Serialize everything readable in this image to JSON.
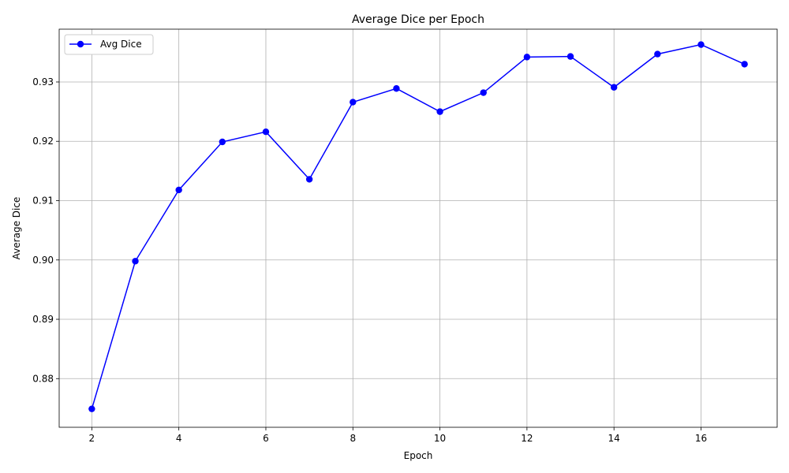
{
  "chart_data": {
    "type": "line",
    "title": "Average Dice per Epoch",
    "xlabel": "Epoch",
    "ylabel": "Average Dice",
    "x": [
      2,
      3,
      4,
      5,
      6,
      7,
      8,
      9,
      10,
      11,
      12,
      13,
      14,
      15,
      16,
      17
    ],
    "series": [
      {
        "name": "Avg Dice",
        "color": "#0000ff",
        "marker": "circle",
        "values": [
          0.8749,
          0.8998,
          0.9118,
          0.9199,
          0.9216,
          0.9136,
          0.9266,
          0.9289,
          0.925,
          0.9282,
          0.9342,
          0.9343,
          0.9291,
          0.9347,
          0.9363,
          0.933
        ]
      }
    ],
    "xlim": [
      1.25,
      17.75
    ],
    "ylim": [
      0.8718,
      0.9389
    ],
    "xticks": [
      2,
      4,
      6,
      8,
      10,
      12,
      14,
      16
    ],
    "yticks": [
      0.88,
      0.89,
      0.9,
      0.91,
      0.92,
      0.93
    ],
    "xtick_labels": [
      "2",
      "4",
      "6",
      "8",
      "10",
      "12",
      "14",
      "16"
    ],
    "ytick_labels": [
      "0.88",
      "0.89",
      "0.90",
      "0.91",
      "0.92",
      "0.93"
    ],
    "grid": true,
    "legend_position": "top-left"
  }
}
